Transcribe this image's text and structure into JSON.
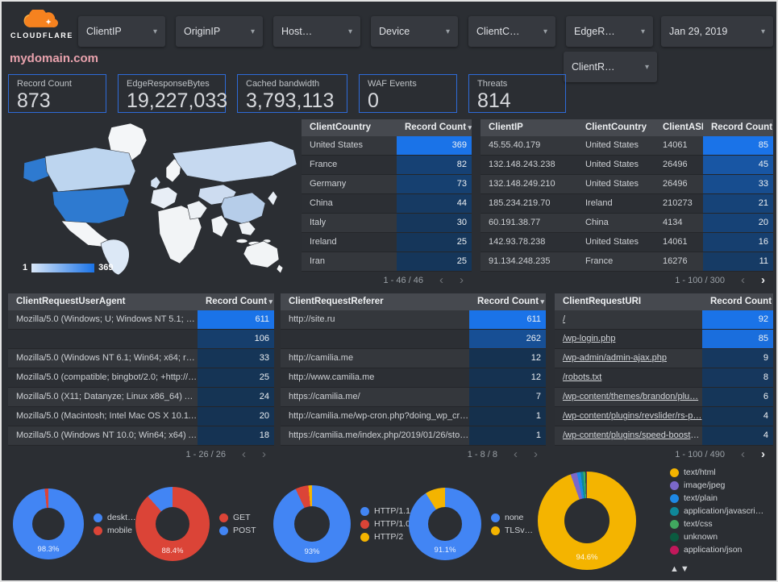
{
  "header": {
    "logo_text": "CLOUDFLARE",
    "filters": [
      "ClientIP",
      "OriginIP",
      "Host…",
      "Device",
      "ClientC…",
      "EdgeR…"
    ],
    "date_filter": "Jan 29, 2019",
    "filter_row2": "ClientR…"
  },
  "title": "mydomain.com",
  "scorecards": [
    {
      "label": "Record Count",
      "value": "873"
    },
    {
      "label": "EdgeResponseBytes",
      "value": "19,227,033"
    },
    {
      "label": "Cached bandwidth",
      "value": "3,793,113"
    },
    {
      "label": "WAF Events",
      "value": "0"
    },
    {
      "label": "Threats",
      "value": "814"
    }
  ],
  "map": {
    "legend_min": "1",
    "legend_max": "369"
  },
  "tables": {
    "client_country": {
      "columns": [
        "ClientCountry",
        "Record Count"
      ],
      "sort_glyph": "▾",
      "max": 369,
      "rows": [
        [
          "United States",
          369
        ],
        [
          "France",
          82
        ],
        [
          "Germany",
          73
        ],
        [
          "China",
          44
        ],
        [
          "Italy",
          30
        ],
        [
          "Ireland",
          25
        ],
        [
          "Iran",
          25
        ]
      ],
      "pagination": "1 - 46 / 46",
      "prev_active": false,
      "next_active": false
    },
    "client_ip": {
      "columns": [
        "ClientIP",
        "ClientCountry",
        "ClientASN",
        "Record Count"
      ],
      "sort_glyph": "–",
      "max": 85,
      "rows": [
        [
          "45.55.40.179",
          "United States",
          "14061",
          85
        ],
        [
          "132.148.243.238",
          "United States",
          "26496",
          45
        ],
        [
          "132.148.249.210",
          "United States",
          "26496",
          33
        ],
        [
          "185.234.219.70",
          "Ireland",
          "210273",
          21
        ],
        [
          "60.191.38.77",
          "China",
          "4134",
          20
        ],
        [
          "142.93.78.238",
          "United States",
          "14061",
          16
        ],
        [
          "91.134.248.235",
          "France",
          "16276",
          11
        ]
      ],
      "pagination": "1 - 100 / 300",
      "prev_active": false,
      "next_active": true
    },
    "user_agent": {
      "columns": [
        "ClientRequestUserAgent",
        "Record Count"
      ],
      "sort_glyph": "▾",
      "max": 611,
      "rows": [
        [
          "Mozilla/5.0 (Windows; U; Windows NT 5.1; en-U…",
          611
        ],
        [
          "",
          106
        ],
        [
          "Mozilla/5.0 (Windows NT 6.1; Win64; x64; rv:64.…",
          33
        ],
        [
          "Mozilla/5.0 (compatible; bingbot/2.0; +http://w…",
          25
        ],
        [
          "Mozilla/5.0 (X11; Datanyze; Linux x86_64) Appl…",
          24
        ],
        [
          "Mozilla/5.0 (Macintosh; Intel Mac OS X 10.11; r…",
          20
        ],
        [
          "Mozilla/5.0 (Windows NT 10.0; Win64; x64) App…",
          18
        ]
      ],
      "pagination": "1 - 26 / 26",
      "prev_active": false,
      "next_active": false
    },
    "referer": {
      "columns": [
        "ClientRequestReferer",
        "Record Count"
      ],
      "sort_glyph": "▾",
      "max": 611,
      "rows": [
        [
          "http://site.ru",
          611
        ],
        [
          "",
          262
        ],
        [
          "http://camilia.me",
          12
        ],
        [
          "http://www.camilia.me",
          12
        ],
        [
          "https://camilia.me/",
          7
        ],
        [
          "http://camilia.me/wp-cron.php?doing_wp_cron…",
          1
        ],
        [
          "https://camilia.me/index.php/2019/01/26/stor…",
          1
        ]
      ],
      "pagination": "1 - 8 / 8",
      "prev_active": false,
      "next_active": false
    },
    "uri": {
      "columns": [
        "ClientRequestURI",
        "Record Count"
      ],
      "sort_glyph": "–",
      "max": 92,
      "links": true,
      "rows": [
        [
          "/",
          92
        ],
        [
          "/wp-login.php",
          85
        ],
        [
          "/wp-admin/admin-ajax.php",
          9
        ],
        [
          "/robots.txt",
          8
        ],
        [
          "/wp-content/themes/brandon/plu…",
          6
        ],
        [
          "/wp-content/plugins/revslider/rs-p…",
          4
        ],
        [
          "/wp-content/plugins/speed-booste…",
          4
        ]
      ],
      "pagination": "1 - 100 / 490",
      "prev_active": false,
      "next_active": true
    }
  },
  "chart_data": [
    {
      "type": "heatmap",
      "name": "client-country-map",
      "categories": [
        "United States",
        "France",
        "Germany",
        "China",
        "Italy",
        "Ireland",
        "Iran"
      ],
      "values": [
        369,
        82,
        73,
        44,
        30,
        25,
        25
      ],
      "range": [
        1,
        369
      ],
      "legend_position": "bottom-left"
    },
    {
      "type": "pie",
      "name": "device-type",
      "center_label": "98.3%",
      "legend_position": "right",
      "slices": [
        {
          "label": "deskt…",
          "value": 98.3,
          "color": "#4285f4"
        },
        {
          "label": "mobile",
          "value": 1.7,
          "color": "#db4437"
        }
      ]
    },
    {
      "type": "pie",
      "name": "request-method",
      "center_label": "88.4%",
      "legend_position": "right",
      "slices": [
        {
          "label": "GET",
          "value": 88.4,
          "color": "#db4437"
        },
        {
          "label": "POST",
          "value": 11.6,
          "color": "#4285f4"
        }
      ]
    },
    {
      "type": "pie",
      "name": "http-version",
      "center_label": "93%",
      "legend_position": "right",
      "slices": [
        {
          "label": "HTTP/1.1",
          "value": 93,
          "color": "#4285f4"
        },
        {
          "label": "HTTP/1.0",
          "value": 5.5,
          "color": "#db4437"
        },
        {
          "label": "HTTP/2",
          "value": 1.5,
          "color": "#f4b400"
        }
      ]
    },
    {
      "type": "pie",
      "name": "tls-version",
      "center_label": "91.1%",
      "legend_position": "right",
      "slices": [
        {
          "label": "none",
          "value": 91.1,
          "color": "#4285f4"
        },
        {
          "label": "TLSv…",
          "value": 8.9,
          "color": "#f4b400"
        }
      ]
    },
    {
      "type": "pie",
      "name": "content-type",
      "center_label": "94.6%",
      "legend_position": "right",
      "sort_arrows": "▲▼",
      "slices": [
        {
          "label": "text/html",
          "value": 94.6,
          "color": "#f4b400"
        },
        {
          "label": "image/jpeg",
          "value": 2.1,
          "color": "#7b68c9"
        },
        {
          "label": "text/plain",
          "value": 1.2,
          "color": "#1e88e5"
        },
        {
          "label": "application/javascri…",
          "value": 0.9,
          "color": "#0f8799"
        },
        {
          "label": "text/css",
          "value": 0.6,
          "color": "#41a85f"
        },
        {
          "label": "unknown",
          "value": 0.4,
          "color": "#0b5b40"
        },
        {
          "label": "application/json",
          "value": 0.2,
          "color": "#c2185b"
        }
      ]
    }
  ]
}
